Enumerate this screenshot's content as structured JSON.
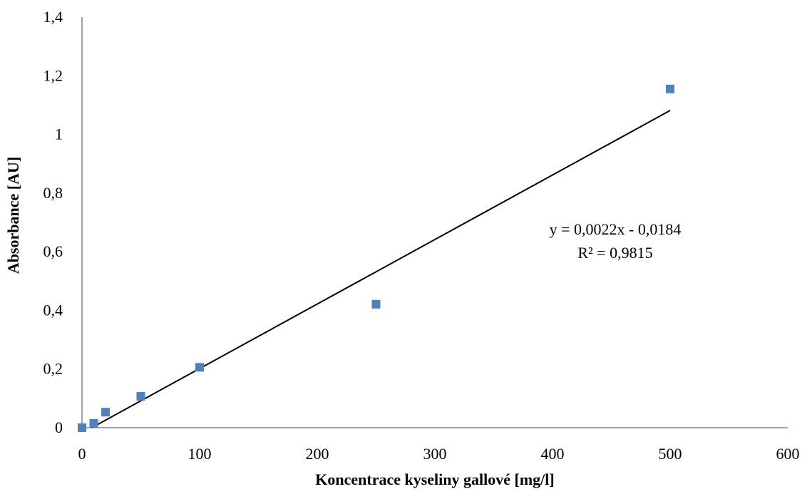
{
  "chart_data": {
    "type": "scatter",
    "title": "",
    "xlabel": "Koncentrace kyseliny gallové [mg/l]",
    "ylabel": "Absorbance [AU]",
    "xlim": [
      0,
      600
    ],
    "ylim": [
      0,
      1.4
    ],
    "x_ticks": [
      "0",
      "100",
      "200",
      "300",
      "400",
      "500",
      "600"
    ],
    "y_ticks": [
      "0",
      "0,2",
      "0,4",
      "0,6",
      "0,8",
      "1",
      "1,2",
      "1,4"
    ],
    "grid": false,
    "series": [
      {
        "points": [
          {
            "x": 0,
            "y": 0.0
          },
          {
            "x": 10,
            "y": 0.015
          },
          {
            "x": 20,
            "y": 0.053
          },
          {
            "x": 50,
            "y": 0.107
          },
          {
            "x": 100,
            "y": 0.206
          },
          {
            "x": 250,
            "y": 0.421
          },
          {
            "x": 500,
            "y": 1.155
          }
        ],
        "color": "#4f81bd",
        "marker": "square"
      }
    ],
    "trendline": {
      "type": "linear",
      "slope": 0.0022,
      "intercept": -0.0184,
      "x_range": [
        0,
        500
      ],
      "color": "#000000",
      "equation": "y = 0,0022x - 0,0184",
      "r_squared": "R² = 0,9815"
    }
  }
}
